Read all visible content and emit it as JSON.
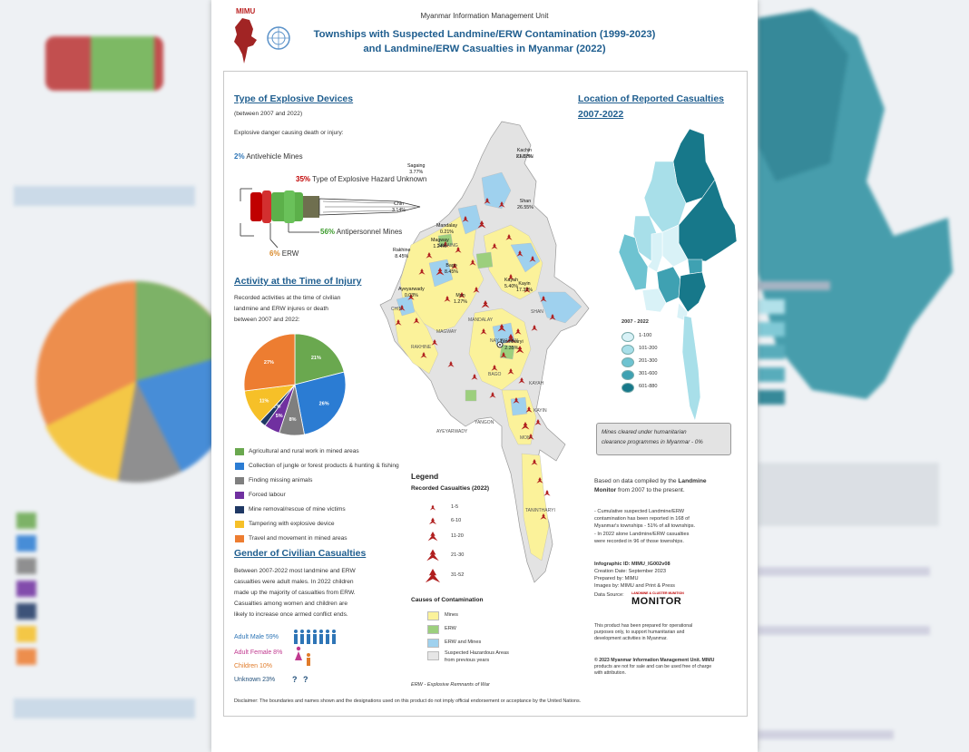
{
  "header": {
    "org_logo_text": "MIMU",
    "org_name": "Myanmar Information Management Unit",
    "title_line1": "Townships with Suspected Landmine/ERW Contamination (1999-2023)",
    "title_line2": "and Landmine/ERW Casualties in Myanmar (2022)"
  },
  "explosive": {
    "heading": "Type of Explosive Devices",
    "period": "(between 2007 and 2022)",
    "intro": "Explosive danger causing death or injury:",
    "antivehicle_pct": "2%",
    "antivehicle_label": "Antivehicle Mines",
    "unknown_pct": "35%",
    "unknown_label": "Type of Explosive Hazard Unknown",
    "antipersonnel_pct": "56%",
    "antipersonnel_label": "Antipersonnel Mines",
    "erw_pct": "6%",
    "erw_label": "ERW"
  },
  "activity": {
    "heading": "Activity at the Time of Injury",
    "desc": [
      "Recorded activities at the time of civilian",
      "landmine and ERW injures or death",
      "between 2007 and 2022:"
    ],
    "slices": [
      {
        "label": "Agricultural and rural work in mined areas",
        "value": 21,
        "pct_text": "21%",
        "color": "#6aa84f"
      },
      {
        "label": "Collection of jungle or forest products & hunting & fishing",
        "value": 26,
        "pct_text": "26%",
        "color": "#2b7cd3"
      },
      {
        "label": "Finding missing animals",
        "value": 8,
        "pct_text": "8%",
        "color": "#7f7f7f"
      },
      {
        "label": "Forced labour",
        "value": 5,
        "pct_text": "5%",
        "color": "#7030a0"
      },
      {
        "label": "Mine removal/rescue of mine victims",
        "value": 2,
        "pct_text": "2%",
        "color": "#1f3864"
      },
      {
        "label": "Tampering with explosive device",
        "value": 11,
        "pct_text": "11%",
        "color": "#f6c028"
      },
      {
        "label": "Travel and movement in mined areas",
        "value": 27,
        "pct_text": "27%",
        "color": "#ed7d31"
      }
    ]
  },
  "gender": {
    "heading": "Gender of Civilian Casualties",
    "desc": [
      "Between 2007-2022 most landmine and ERW",
      "casualties were adult males. In 2022 children",
      "made up the majority of casualties from ERW.",
      "Casualties among women and children are",
      "likely to increase once armed conflict ends."
    ],
    "rows": [
      {
        "label": "Adult Male 59%",
        "color": "#2e75b6"
      },
      {
        "label": "Adult Female 8%",
        "color": "#c0398f"
      },
      {
        "label": "Children 10%",
        "color": "#e07b2a"
      },
      {
        "label": "Unknown 23%",
        "color": "#1f4e79"
      }
    ],
    "unknown_symbols": "? ?"
  },
  "map_labels": [
    "KACHIN",
    "SAGAING",
    "CHIN",
    "MANDALAY",
    "SHAN",
    "MAGWAY",
    "NAY PYI TAW",
    "RAKHINE",
    "BAGO",
    "KAYAH",
    "KAYIN",
    "AYEYARWADY",
    "YANGON",
    "MON",
    "TANINTHARYI"
  ],
  "legend": {
    "heading": "Legend",
    "casualties_heading": "Recorded Casualties (2022)",
    "casualty_ranges": [
      "1-5",
      "6-10",
      "11-20",
      "21-30",
      "31-52"
    ],
    "causes_heading": "Causes of Contamination",
    "causes": [
      {
        "label": "Mines",
        "color": "#fbf29a"
      },
      {
        "label": "ERW",
        "color": "#9ccf7d"
      },
      {
        "label": "ERW and Mines",
        "color": "#9fd1ee"
      },
      {
        "label": "Suspected Hazardous Areas",
        "label2": "from previous years",
        "color": "#e6e6e6"
      }
    ],
    "erw_note": "ERW - Explosive Remnants of War"
  },
  "location": {
    "heading_line1": "Location of Reported Casualties",
    "heading_line2": "2007-2022",
    "regions": [
      {
        "name": "Kachin",
        "pct": "21.82%"
      },
      {
        "name": "Sagaing",
        "pct": "3.77%"
      },
      {
        "name": "Chin",
        "pct": "3.14%"
      },
      {
        "name": "Shan",
        "pct": "26.55%"
      },
      {
        "name": "Mandalay",
        "pct": "0.21%"
      },
      {
        "name": "Magway",
        "pct": "1.24%"
      },
      {
        "name": "Rakhine",
        "pct": "8.45%"
      },
      {
        "name": "Bago",
        "pct": "8.45%"
      },
      {
        "name": "Kayah",
        "pct": "5.40%"
      },
      {
        "name": "Ayeyarwady",
        "pct": "0.03%"
      },
      {
        "name": "Kayin",
        "pct": "17.32%"
      },
      {
        "name": "Mon",
        "pct": "1.27%"
      },
      {
        "name": "Tanintharyi",
        "pct": "2.35%"
      }
    ],
    "legend_title": "2007 - 2022",
    "legend_items": [
      {
        "label": "1-100",
        "color": "#d9f2f7"
      },
      {
        "label": "101-200",
        "color": "#a8dfe9"
      },
      {
        "label": "201-300",
        "color": "#6ec3d1"
      },
      {
        "label": "301-600",
        "color": "#3fa1b2"
      },
      {
        "label": "601-880",
        "color": "#17788a"
      }
    ]
  },
  "mines_cleared": [
    "Mines cleared under humanitarian",
    "clearance programmes in Myanmar - 0%"
  ],
  "info": {
    "based_line1_a": "Based on data compiled by the ",
    "based_line1_b": "Landmine",
    "based_line2_a": "Monitor",
    "based_line2_b": " from 2007 to the present.",
    "bullet1": [
      "- Cumulative suspected Landmine/ERW",
      "contamination has been reported in 168 of",
      "Myanmar's townships - 51% of all townships."
    ],
    "bullet2": [
      "- In 2022 alone Landmine/ERW casualties",
      "were recorded in 96 of those townships."
    ],
    "infographic_id": "Infographic ID: MIMU_IG002v08",
    "creation_date": "Creation Date: September 2023",
    "prepared_by": "Prepared by: MIMU",
    "images_by": "Images by: MIMU and Print & Press",
    "data_source": "Data Source:",
    "monitor_logo_top": "LANDMINE & CLUSTER MUNITION",
    "monitor_logo": "MONITOR",
    "product_note": [
      "This product has been prepared for operational",
      "purposes only, to support humanitarian and",
      "development activities in Myanmar."
    ],
    "copyright": [
      "© 2023 Myanmar Information Management Unit. MIMU",
      "products are not for sale and can be used free of charge",
      "with attribution."
    ]
  },
  "disclaimer": "Disclaimer: The boundaries and names shown and the designations used on this product do not imply official endorsement or acceptance by the United Nations."
}
